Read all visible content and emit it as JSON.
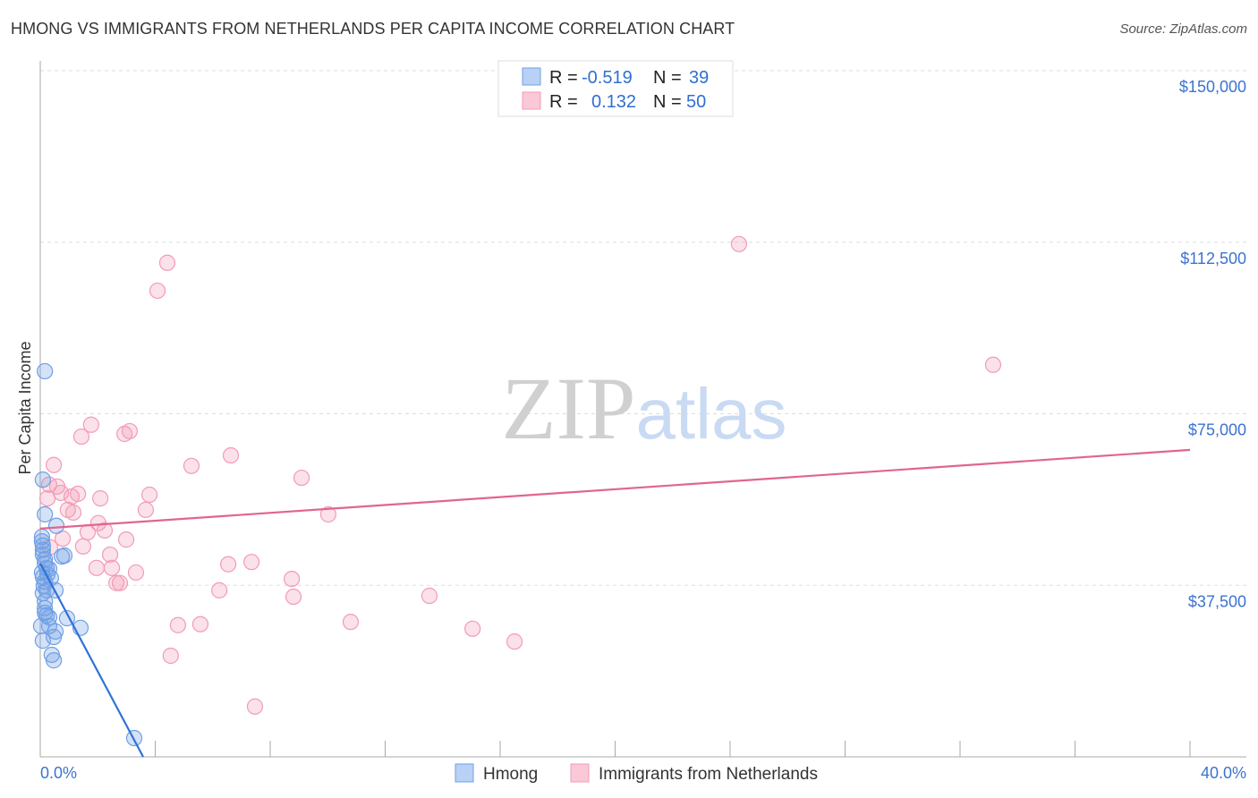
{
  "title": "HMONG VS IMMIGRANTS FROM NETHERLANDS PER CAPITA INCOME CORRELATION CHART",
  "source": "Source: ZipAtlas.com",
  "watermark": "ZIPatlas",
  "chart_data": {
    "type": "scatter",
    "title": "HMONG VS IMMIGRANTS FROM NETHERLANDS PER CAPITA INCOME CORRELATION CHART",
    "xlabel": "",
    "ylabel": "Per Capita Income",
    "xlim": [
      0,
      40
    ],
    "ylim": [
      0,
      150000
    ],
    "x_tick_labels": [
      "0.0%",
      "40.0%"
    ],
    "y_ticks": [
      37500,
      75000,
      112500,
      150000
    ],
    "y_tick_labels": [
      "$37,500",
      "$75,000",
      "$112,500",
      "$150,000"
    ],
    "grid": true,
    "legend_position": "top-center",
    "stats": [
      {
        "r_label": "R =",
        "r": "-0.519",
        "n_label": "N =",
        "n": "39"
      },
      {
        "r_label": "R =",
        "r": "0.132",
        "n_label": "N =",
        "n": "50"
      }
    ],
    "series": [
      {
        "name": "Hmong",
        "color": "#6f9fe6",
        "line_color": "#2f72d8",
        "trend": [
          [
            0,
            42300
          ],
          [
            3.58,
            0
          ]
        ],
        "points": [
          [
            0.16,
            84300
          ],
          [
            0.09,
            60600
          ],
          [
            0.16,
            53000
          ],
          [
            0.56,
            50500
          ],
          [
            0.06,
            48100
          ],
          [
            0.06,
            47100
          ],
          [
            0.09,
            46200
          ],
          [
            0.09,
            45200
          ],
          [
            0.09,
            44200
          ],
          [
            0.16,
            43200
          ],
          [
            0.84,
            44000
          ],
          [
            0.75,
            43800
          ],
          [
            0.16,
            42300
          ],
          [
            0.22,
            41300
          ],
          [
            0.31,
            41100
          ],
          [
            0.06,
            40300
          ],
          [
            0.25,
            39900
          ],
          [
            0.09,
            39300
          ],
          [
            0.37,
            39100
          ],
          [
            0.16,
            38300
          ],
          [
            0.12,
            37400
          ],
          [
            0.53,
            36400
          ],
          [
            0.22,
            36400
          ],
          [
            0.09,
            35800
          ],
          [
            0.16,
            34000
          ],
          [
            0.16,
            32500
          ],
          [
            0.16,
            31500
          ],
          [
            0.22,
            30900
          ],
          [
            0.31,
            30500
          ],
          [
            0.93,
            30300
          ],
          [
            0.31,
            28600
          ],
          [
            0.03,
            28600
          ],
          [
            1.4,
            28200
          ],
          [
            0.53,
            27400
          ],
          [
            0.47,
            26200
          ],
          [
            0.09,
            25400
          ],
          [
            0.4,
            22300
          ],
          [
            0.47,
            21100
          ],
          [
            3.27,
            4100
          ]
        ]
      },
      {
        "name": "Immigrants from Netherlands",
        "color": "#f29bb6",
        "line_color": "#e0668e",
        "trend": [
          [
            0,
            49900
          ],
          [
            40,
            67100
          ]
        ],
        "points": [
          [
            24.31,
            112100
          ],
          [
            4.42,
            108000
          ],
          [
            4.08,
            101900
          ],
          [
            33.15,
            85700
          ],
          [
            1.77,
            72600
          ],
          [
            3.11,
            71200
          ],
          [
            2.93,
            70600
          ],
          [
            1.43,
            70000
          ],
          [
            6.63,
            65900
          ],
          [
            5.26,
            63600
          ],
          [
            0.47,
            63800
          ],
          [
            9.09,
            61000
          ],
          [
            0.31,
            59500
          ],
          [
            0.59,
            59100
          ],
          [
            0.72,
            57700
          ],
          [
            1.31,
            57500
          ],
          [
            1.09,
            56900
          ],
          [
            2.09,
            56500
          ],
          [
            3.8,
            57300
          ],
          [
            0.25,
            56500
          ],
          [
            3.67,
            54000
          ],
          [
            0.96,
            54000
          ],
          [
            1.15,
            53400
          ],
          [
            10.02,
            53000
          ],
          [
            2.02,
            51100
          ],
          [
            2.24,
            49500
          ],
          [
            1.65,
            49100
          ],
          [
            0.78,
            47700
          ],
          [
            2.99,
            47500
          ],
          [
            1.49,
            46000
          ],
          [
            0.34,
            45800
          ],
          [
            2.43,
            44200
          ],
          [
            6.54,
            42100
          ],
          [
            7.35,
            42600
          ],
          [
            1.96,
            41300
          ],
          [
            2.49,
            41300
          ],
          [
            3.33,
            40300
          ],
          [
            8.75,
            38900
          ],
          [
            2.65,
            38000
          ],
          [
            2.77,
            38000
          ],
          [
            6.23,
            36400
          ],
          [
            8.81,
            35000
          ],
          [
            13.54,
            35200
          ],
          [
            4.79,
            28800
          ],
          [
            5.57,
            29000
          ],
          [
            10.8,
            29500
          ],
          [
            15.04,
            28000
          ],
          [
            16.5,
            25200
          ],
          [
            4.54,
            22100
          ],
          [
            7.47,
            11000
          ]
        ]
      }
    ]
  }
}
